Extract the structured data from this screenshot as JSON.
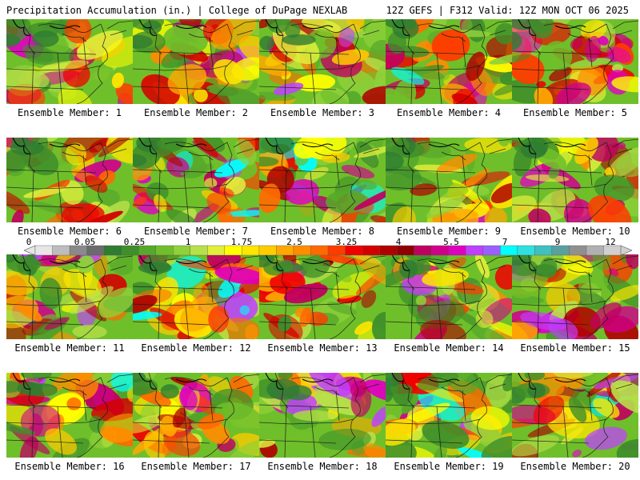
{
  "header": {
    "left": "Precipitation Accumulation (in.) | College of DuPage NEXLAB",
    "right": "12Z GEFS | F312 Valid: 12Z MON OCT 06 2025"
  },
  "colorbar": {
    "ticks": [
      "0",
      "0.05",
      "0.25",
      "1",
      "1.75",
      "2.5",
      "3.25",
      "4",
      "5.5",
      "7",
      "9",
      "12"
    ],
    "colors": [
      "#e6e6e6",
      "#bdbdbd",
      "#8a8a8a",
      "#6b6b6b",
      "#2e7d32",
      "#3f8f2a",
      "#56a82b",
      "#6fbf2a",
      "#8fd13a",
      "#b8e04a",
      "#e0ef3c",
      "#ffff00",
      "#ffe600",
      "#ffcc00",
      "#ffa800",
      "#ff8c00",
      "#ff6a00",
      "#ff3c00",
      "#f00000",
      "#d40000",
      "#b00000",
      "#900000",
      "#c00060",
      "#d0008c",
      "#e000c0",
      "#c040ff",
      "#9a60ff",
      "#00ffff",
      "#2ee0e0",
      "#40c0c0",
      "#5aa0a0",
      "#909090",
      "#b0b0b0",
      "#d0d0d0"
    ]
  },
  "members": [
    {
      "label": "Ensemble Member: 1"
    },
    {
      "label": "Ensemble Member: 2"
    },
    {
      "label": "Ensemble Member: 3"
    },
    {
      "label": "Ensemble Member: 4"
    },
    {
      "label": "Ensemble Member: 5"
    },
    {
      "label": "Ensemble Member: 6"
    },
    {
      "label": "Ensemble Member: 7"
    },
    {
      "label": "Ensemble Member: 8"
    },
    {
      "label": "Ensemble Member: 9"
    },
    {
      "label": "Ensemble Member: 10"
    },
    {
      "label": "Ensemble Member: 11"
    },
    {
      "label": "Ensemble Member: 12"
    },
    {
      "label": "Ensemble Member: 13"
    },
    {
      "label": "Ensemble Member: 14"
    },
    {
      "label": "Ensemble Member: 15"
    },
    {
      "label": "Ensemble Member: 16"
    },
    {
      "label": "Ensemble Member: 17"
    },
    {
      "label": "Ensemble Member: 18"
    },
    {
      "label": "Ensemble Member: 19"
    },
    {
      "label": "Ensemble Member: 20"
    }
  ]
}
